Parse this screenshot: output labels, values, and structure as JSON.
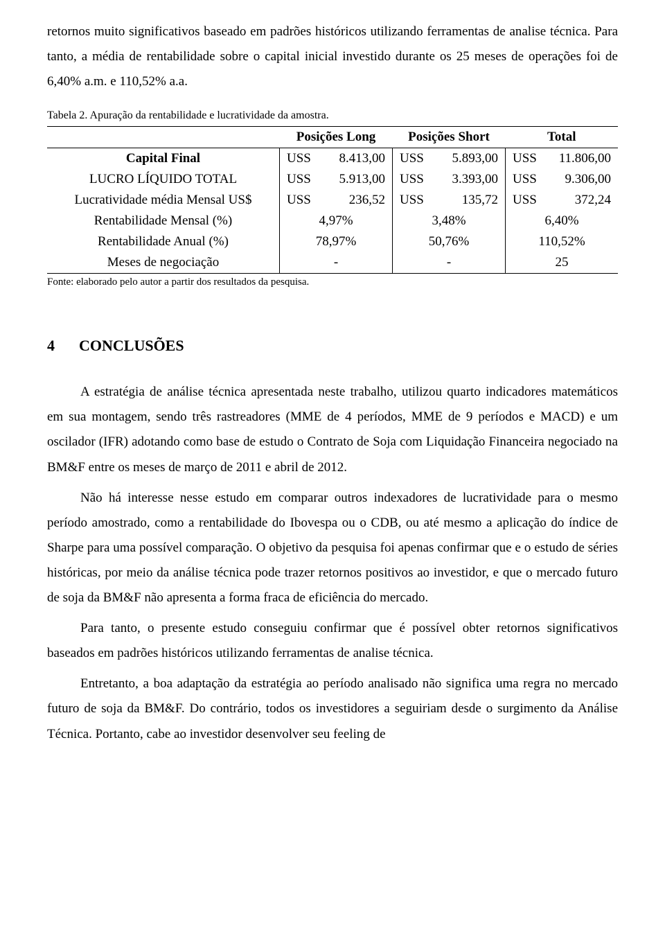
{
  "intro_para": "retornos muito significativos baseado em padrões históricos utilizando ferramentas de analise técnica. Para tanto, a média de rentabilidade sobre o capital inicial investido durante os 25 meses de operações foi de 6,40% a.m. e 110,52% a.a.",
  "table_caption": "Tabela 2. Apuração da rentabilidade e lucratividade da amostra.",
  "table": {
    "headers": [
      "",
      "Posições Long",
      "Posições Short",
      "Total"
    ],
    "rows": [
      {
        "label": "Capital Final",
        "bold": true,
        "long": {
          "cur": "USS",
          "val": "8.413,00"
        },
        "short": {
          "cur": "USS",
          "val": "5.893,00"
        },
        "total": {
          "cur": "USS",
          "val": "11.806,00"
        }
      },
      {
        "label": "LUCRO LÍQUIDO TOTAL",
        "bold": false,
        "long": {
          "cur": "USS",
          "val": "5.913,00"
        },
        "short": {
          "cur": "USS",
          "val": "3.393,00"
        },
        "total": {
          "cur": "USS",
          "val": "9.306,00"
        }
      },
      {
        "label": "Lucratividade média Mensal US$",
        "bold": false,
        "long": {
          "cur": "USS",
          "val": "236,52"
        },
        "short": {
          "cur": "USS",
          "val": "135,72"
        },
        "total": {
          "cur": "USS",
          "val": "372,24"
        }
      }
    ],
    "single_rows": [
      {
        "label": "Rentabilidade Mensal (%)",
        "long": "4,97%",
        "short": "3,48%",
        "total": "6,40%"
      },
      {
        "label": "Rentabilidade Anual (%)",
        "long": "78,97%",
        "short": "50,76%",
        "total": "110,52%"
      },
      {
        "label": "Meses de negociação",
        "long": "-",
        "short": "-",
        "total": "25"
      }
    ]
  },
  "table_source": "Fonte: elaborado pelo autor a partir dos resultados da pesquisa.",
  "section": {
    "num": "4",
    "title": "CONCLUSÕES"
  },
  "paras": [
    "A estratégia de análise técnica apresentada neste trabalho, utilizou quarto indicadores matemáticos em sua montagem, sendo três rastreadores (MME de 4 períodos, MME de 9 períodos e MACD) e um oscilador (IFR) adotando como base de estudo o Contrato de Soja com Liquidação Financeira negociado na BM&F entre os meses de março de 2011 e abril de 2012.",
    "Não há interesse nesse estudo em comparar outros indexadores de lucratividade para o mesmo período amostrado, como a rentabilidade do Ibovespa ou o CDB, ou até mesmo a aplicação do índice de Sharpe para uma possível comparação. O objetivo da pesquisa foi apenas confirmar que e o estudo de séries históricas, por meio da análise técnica pode trazer retornos positivos ao investidor, e que o mercado futuro de soja da BM&F não apresenta a forma fraca de eficiência do mercado.",
    "Para tanto, o presente estudo conseguiu confirmar que é possível obter retornos significativos baseados em padrões históricos utilizando ferramentas de analise técnica.",
    "Entretanto, a boa adaptação da estratégia ao período analisado não significa uma regra no mercado futuro de soja da BM&F. Do contrário, todos os investidores a seguiriam desde o surgimento da Análise Técnica. Portanto, cabe ao investidor desenvolver seu feeling de"
  ]
}
